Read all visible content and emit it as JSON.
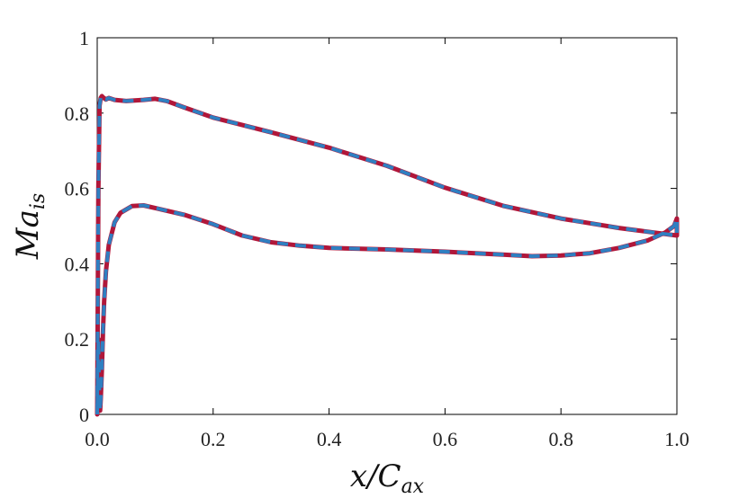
{
  "chart_data": {
    "type": "line",
    "title": "",
    "xlabel": {
      "main": "x/C",
      "sub": "ax"
    },
    "ylabel": {
      "main": "Ma",
      "sub": "is"
    },
    "xlim": [
      0,
      1
    ],
    "ylim": [
      0,
      1
    ],
    "xticks": [
      "0.0",
      "0.2",
      "0.4",
      "0.6",
      "0.8",
      "1.0"
    ],
    "yticks": [
      "0",
      "0.2",
      "0.4",
      "0.6",
      "0.8",
      "1"
    ],
    "grid": false,
    "legend": "none",
    "colors": {
      "series_a": "#b0173a",
      "series_b": "#2f7fc1",
      "axis": "#000000"
    },
    "series": [
      {
        "style": "solid",
        "color": "#b0173a",
        "x": [
          0.0,
          0.002,
          0.004,
          0.006,
          0.008,
          0.01,
          0.015,
          0.02,
          0.03,
          0.05,
          0.08,
          0.1,
          0.12,
          0.15,
          0.2,
          0.3,
          0.4,
          0.5,
          0.6,
          0.7,
          0.8,
          0.9,
          0.95,
          1.0,
          1.0,
          0.995,
          0.98,
          0.95,
          0.9,
          0.85,
          0.8,
          0.75,
          0.7,
          0.6,
          0.5,
          0.4,
          0.35,
          0.3,
          0.25,
          0.2,
          0.15,
          0.1,
          0.08,
          0.06,
          0.04,
          0.03,
          0.02,
          0.015,
          0.012,
          0.01,
          0.008,
          0.006,
          0.005,
          0.004,
          0.003,
          0.002,
          0.0
        ],
        "y": [
          0.0,
          0.6,
          0.82,
          0.84,
          0.845,
          0.842,
          0.836,
          0.84,
          0.835,
          0.832,
          0.835,
          0.838,
          0.832,
          0.815,
          0.788,
          0.749,
          0.708,
          0.66,
          0.602,
          0.554,
          0.52,
          0.495,
          0.485,
          0.475,
          0.52,
          0.5,
          0.483,
          0.462,
          0.442,
          0.428,
          0.422,
          0.42,
          0.424,
          0.432,
          0.438,
          0.442,
          0.448,
          0.457,
          0.475,
          0.505,
          0.53,
          0.548,
          0.555,
          0.553,
          0.535,
          0.51,
          0.45,
          0.38,
          0.3,
          0.22,
          0.12,
          0.04,
          0.01,
          0.05,
          0.12,
          0.2,
          0.0
        ]
      },
      {
        "style": "dashed",
        "color": "#2f7fc1",
        "x": [
          0.0,
          0.002,
          0.004,
          0.006,
          0.008,
          0.01,
          0.015,
          0.02,
          0.03,
          0.05,
          0.08,
          0.1,
          0.12,
          0.15,
          0.2,
          0.3,
          0.4,
          0.5,
          0.6,
          0.7,
          0.8,
          0.9,
          0.95,
          1.0,
          1.0,
          0.995,
          0.98,
          0.95,
          0.9,
          0.85,
          0.8,
          0.75,
          0.7,
          0.6,
          0.5,
          0.4,
          0.35,
          0.3,
          0.25,
          0.2,
          0.15,
          0.1,
          0.08,
          0.06,
          0.04,
          0.03,
          0.02,
          0.015,
          0.012,
          0.01,
          0.008,
          0.006,
          0.005,
          0.004,
          0.003,
          0.002,
          0.0
        ],
        "y": [
          0.0,
          0.6,
          0.82,
          0.84,
          0.845,
          0.842,
          0.836,
          0.84,
          0.835,
          0.832,
          0.835,
          0.838,
          0.832,
          0.815,
          0.788,
          0.749,
          0.708,
          0.66,
          0.602,
          0.554,
          0.52,
          0.495,
          0.485,
          0.475,
          0.52,
          0.5,
          0.483,
          0.462,
          0.442,
          0.428,
          0.422,
          0.42,
          0.424,
          0.432,
          0.438,
          0.442,
          0.448,
          0.457,
          0.475,
          0.505,
          0.53,
          0.548,
          0.555,
          0.553,
          0.535,
          0.51,
          0.45,
          0.38,
          0.3,
          0.22,
          0.12,
          0.04,
          0.01,
          0.05,
          0.12,
          0.2,
          0.0
        ]
      }
    ]
  }
}
